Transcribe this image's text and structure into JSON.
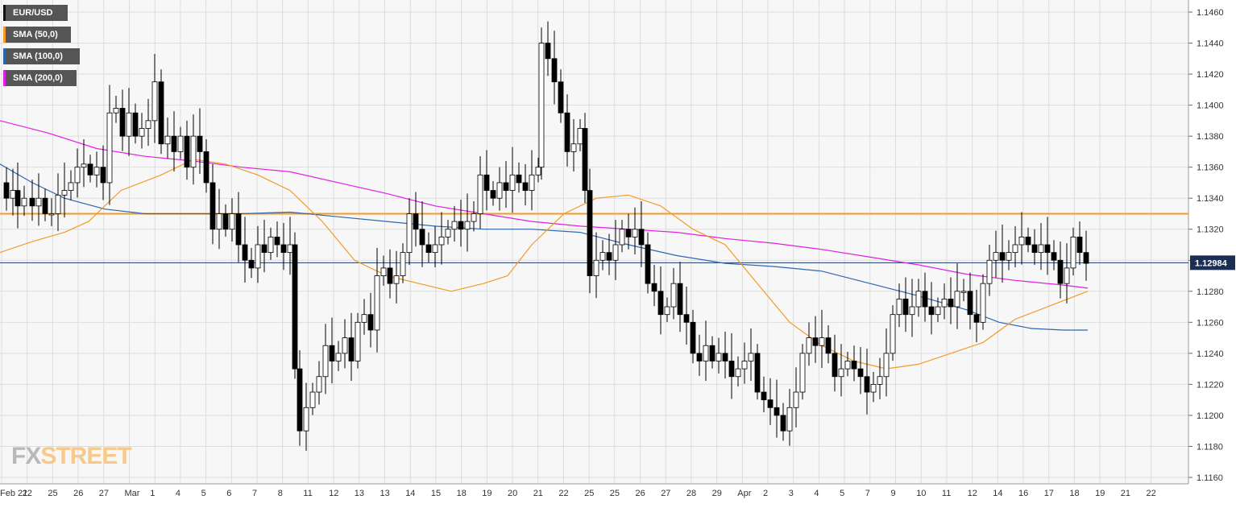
{
  "brand": {
    "fx": "FX",
    "street": "STREET"
  },
  "legend": [
    {
      "label": "EUR/USD",
      "color": "#111111"
    },
    {
      "label": "SMA (50,0)",
      "color": "#f39a2a"
    },
    {
      "label": "SMA (100,0)",
      "color": "#2f67ad"
    },
    {
      "label": "SMA (200,0)",
      "color": "#e020e0"
    }
  ],
  "price_label": "1.12984",
  "chart_data": {
    "type": "candlestick",
    "symbol": "EUR/USD",
    "ylim": [
      1.1155,
      1.1465
    ],
    "yticks": [
      "1.1460",
      "1.1440",
      "1.1420",
      "1.1400",
      "1.1380",
      "1.1360",
      "1.1340",
      "1.1320",
      "1.1300",
      "1.1280",
      "1.1260",
      "1.1240",
      "1.1220",
      "1.1200",
      "1.1180",
      "1.1160"
    ],
    "xticks": [
      "Feb 21",
      "22",
      "25",
      "26",
      "27",
      "Mar",
      "1",
      "4",
      "5",
      "6",
      "7",
      "8",
      "11",
      "12",
      "13",
      "13",
      "14",
      "15",
      "18",
      "19",
      "20",
      "21",
      "22",
      "25",
      "25",
      "26",
      "27",
      "28",
      "29",
      "Apr",
      "2",
      "3",
      "4",
      "5",
      "7",
      "9",
      "10",
      "11",
      "12",
      "14",
      "16",
      "17",
      "18",
      "19",
      "21",
      "22"
    ],
    "current_price": 1.12984,
    "resistance_level": 1.133,
    "colors": {
      "up": "#ffffff",
      "down": "#000000",
      "grid": "#dddddd",
      "bg": "#f7f7f7",
      "resistance": "#f39a2a",
      "current": "#1b3a6b",
      "sma50": "#f39a2a",
      "sma100": "#2f67ad",
      "sma200": "#e020e0"
    },
    "price_path": [
      [
        0,
        1.135
      ],
      [
        8,
        1.134
      ],
      [
        16,
        1.1345
      ],
      [
        22,
        1.1335
      ],
      [
        30,
        1.134
      ],
      [
        40,
        1.1335
      ],
      [
        48,
        1.134
      ],
      [
        56,
        1.133
      ],
      [
        64,
        1.133
      ],
      [
        72,
        1.1342
      ],
      [
        80,
        1.1345
      ],
      [
        88,
        1.135
      ],
      [
        96,
        1.136
      ],
      [
        104,
        1.1362
      ],
      [
        112,
        1.1355
      ],
      [
        120,
        1.136
      ],
      [
        128,
        1.135
      ],
      [
        136,
        1.1395
      ],
      [
        144,
        1.1398
      ],
      [
        152,
        1.138
      ],
      [
        160,
        1.1395
      ],
      [
        168,
        1.138
      ],
      [
        176,
        1.1385
      ],
      [
        184,
        1.139
      ],
      [
        192,
        1.1415
      ],
      [
        200,
        1.1375
      ],
      [
        208,
        1.138
      ],
      [
        216,
        1.137
      ],
      [
        224,
        1.138
      ],
      [
        232,
        1.136
      ],
      [
        240,
        1.138
      ],
      [
        248,
        1.137
      ],
      [
        256,
        1.135
      ],
      [
        264,
        1.132
      ],
      [
        272,
        1.133
      ],
      [
        280,
        1.132
      ],
      [
        288,
        1.133
      ],
      [
        296,
        1.131
      ],
      [
        304,
        1.13
      ],
      [
        312,
        1.1295
      ],
      [
        320,
        1.131
      ],
      [
        328,
        1.1305
      ],
      [
        336,
        1.1315
      ],
      [
        344,
        1.131
      ],
      [
        352,
        1.1305
      ],
      [
        360,
        1.131
      ],
      [
        366,
        1.123
      ],
      [
        372,
        1.119
      ],
      [
        380,
        1.1205
      ],
      [
        388,
        1.1215
      ],
      [
        396,
        1.1225
      ],
      [
        404,
        1.1245
      ],
      [
        412,
        1.1235
      ],
      [
        420,
        1.124
      ],
      [
        428,
        1.125
      ],
      [
        436,
        1.1235
      ],
      [
        444,
        1.126
      ],
      [
        452,
        1.1265
      ],
      [
        460,
        1.1255
      ],
      [
        468,
        1.129
      ],
      [
        476,
        1.1295
      ],
      [
        484,
        1.1285
      ],
      [
        492,
        1.129
      ],
      [
        500,
        1.1305
      ],
      [
        508,
        1.133
      ],
      [
        516,
        1.132
      ],
      [
        524,
        1.131
      ],
      [
        532,
        1.1305
      ],
      [
        540,
        1.131
      ],
      [
        548,
        1.1315
      ],
      [
        556,
        1.132
      ],
      [
        564,
        1.1325
      ],
      [
        572,
        1.132
      ],
      [
        580,
        1.1325
      ],
      [
        588,
        1.133
      ],
      [
        596,
        1.1355
      ],
      [
        604,
        1.1345
      ],
      [
        612,
        1.134
      ],
      [
        620,
        1.135
      ],
      [
        628,
        1.1345
      ],
      [
        636,
        1.1355
      ],
      [
        644,
        1.135
      ],
      [
        652,
        1.1345
      ],
      [
        660,
        1.1355
      ],
      [
        668,
        1.136
      ],
      [
        672,
        1.144
      ],
      [
        680,
        1.143
      ],
      [
        688,
        1.1415
      ],
      [
        696,
        1.1395
      ],
      [
        704,
        1.137
      ],
      [
        712,
        1.1375
      ],
      [
        720,
        1.1385
      ],
      [
        726,
        1.1345
      ],
      [
        732,
        1.129
      ],
      [
        740,
        1.13
      ],
      [
        748,
        1.1305
      ],
      [
        756,
        1.13
      ],
      [
        764,
        1.131
      ],
      [
        772,
        1.132
      ],
      [
        780,
        1.1315
      ],
      [
        788,
        1.132
      ],
      [
        796,
        1.131
      ],
      [
        804,
        1.1285
      ],
      [
        812,
        1.128
      ],
      [
        820,
        1.1265
      ],
      [
        828,
        1.127
      ],
      [
        836,
        1.1285
      ],
      [
        844,
        1.1265
      ],
      [
        852,
        1.126
      ],
      [
        860,
        1.124
      ],
      [
        868,
        1.1235
      ],
      [
        876,
        1.1245
      ],
      [
        884,
        1.1235
      ],
      [
        892,
        1.124
      ],
      [
        900,
        1.1235
      ],
      [
        908,
        1.1225
      ],
      [
        916,
        1.123
      ],
      [
        924,
        1.1235
      ],
      [
        932,
        1.124
      ],
      [
        940,
        1.1215
      ],
      [
        948,
        1.121
      ],
      [
        956,
        1.1205
      ],
      [
        964,
        1.12
      ],
      [
        972,
        1.119
      ],
      [
        980,
        1.1205
      ],
      [
        988,
        1.1215
      ],
      [
        996,
        1.124
      ],
      [
        1004,
        1.125
      ],
      [
        1012,
        1.1245
      ],
      [
        1020,
        1.125
      ],
      [
        1028,
        1.124
      ],
      [
        1036,
        1.1225
      ],
      [
        1044,
        1.123
      ],
      [
        1052,
        1.1235
      ],
      [
        1060,
        1.123
      ],
      [
        1068,
        1.1225
      ],
      [
        1076,
        1.1215
      ],
      [
        1084,
        1.122
      ],
      [
        1092,
        1.1225
      ],
      [
        1100,
        1.124
      ],
      [
        1108,
        1.1265
      ],
      [
        1116,
        1.1275
      ],
      [
        1124,
        1.1265
      ],
      [
        1132,
        1.127
      ],
      [
        1140,
        1.128
      ],
      [
        1148,
        1.127
      ],
      [
        1156,
        1.1265
      ],
      [
        1164,
        1.127
      ],
      [
        1172,
        1.1275
      ],
      [
        1180,
        1.127
      ],
      [
        1188,
        1.128
      ],
      [
        1196,
        1.128
      ],
      [
        1204,
        1.1265
      ],
      [
        1212,
        1.126
      ],
      [
        1220,
        1.1285
      ],
      [
        1228,
        1.13
      ],
      [
        1236,
        1.1305
      ],
      [
        1244,
        1.13
      ],
      [
        1252,
        1.1305
      ],
      [
        1260,
        1.131
      ],
      [
        1268,
        1.1315
      ],
      [
        1276,
        1.131
      ],
      [
        1284,
        1.1305
      ],
      [
        1292,
        1.131
      ],
      [
        1300,
        1.1305
      ],
      [
        1308,
        1.13
      ],
      [
        1316,
        1.1285
      ],
      [
        1324,
        1.1295
      ],
      [
        1332,
        1.1315
      ],
      [
        1340,
        1.1305
      ],
      [
        1348,
        1.1298
      ]
    ],
    "sma50": [
      [
        0,
        1.1305
      ],
      [
        40,
        1.1312
      ],
      [
        80,
        1.1318
      ],
      [
        110,
        1.1325
      ],
      [
        150,
        1.1345
      ],
      [
        200,
        1.1355
      ],
      [
        240,
        1.1365
      ],
      [
        280,
        1.1362
      ],
      [
        320,
        1.1355
      ],
      [
        360,
        1.1345
      ],
      [
        400,
        1.1325
      ],
      [
        440,
        1.13
      ],
      [
        480,
        1.129
      ],
      [
        520,
        1.1285
      ],
      [
        560,
        1.128
      ],
      [
        600,
        1.1285
      ],
      [
        630,
        1.129
      ],
      [
        660,
        1.131
      ],
      [
        700,
        1.133
      ],
      [
        740,
        1.134
      ],
      [
        780,
        1.1342
      ],
      [
        820,
        1.1335
      ],
      [
        860,
        1.132
      ],
      [
        900,
        1.131
      ],
      [
        940,
        1.1285
      ],
      [
        980,
        1.126
      ],
      [
        1020,
        1.1245
      ],
      [
        1060,
        1.1235
      ],
      [
        1100,
        1.123
      ],
      [
        1140,
        1.1233
      ],
      [
        1180,
        1.124
      ],
      [
        1220,
        1.1247
      ],
      [
        1260,
        1.1262
      ],
      [
        1300,
        1.127
      ],
      [
        1350,
        1.128
      ]
    ],
    "sma100": [
      [
        0,
        1.1362
      ],
      [
        40,
        1.135
      ],
      [
        80,
        1.134
      ],
      [
        130,
        1.1333
      ],
      [
        180,
        1.133
      ],
      [
        240,
        1.133
      ],
      [
        300,
        1.133
      ],
      [
        360,
        1.1331
      ],
      [
        420,
        1.1328
      ],
      [
        480,
        1.1325
      ],
      [
        540,
        1.1322
      ],
      [
        600,
        1.132
      ],
      [
        660,
        1.132
      ],
      [
        720,
        1.1318
      ],
      [
        780,
        1.131
      ],
      [
        840,
        1.1303
      ],
      [
        900,
        1.1298
      ],
      [
        960,
        1.1296
      ],
      [
        1020,
        1.1293
      ],
      [
        1080,
        1.1285
      ],
      [
        1140,
        1.1277
      ],
      [
        1200,
        1.1268
      ],
      [
        1240,
        1.126
      ],
      [
        1280,
        1.1256
      ],
      [
        1320,
        1.1255
      ],
      [
        1350,
        1.1255
      ]
    ],
    "sma200": [
      [
        0,
        1.139
      ],
      [
        60,
        1.1382
      ],
      [
        120,
        1.1372
      ],
      [
        180,
        1.1367
      ],
      [
        240,
        1.1364
      ],
      [
        300,
        1.136
      ],
      [
        360,
        1.1357
      ],
      [
        420,
        1.135
      ],
      [
        480,
        1.1343
      ],
      [
        540,
        1.1335
      ],
      [
        600,
        1.133
      ],
      [
        660,
        1.1325
      ],
      [
        720,
        1.1322
      ],
      [
        780,
        1.132
      ],
      [
        840,
        1.1318
      ],
      [
        900,
        1.1314
      ],
      [
        960,
        1.1311
      ],
      [
        1020,
        1.1307
      ],
      [
        1080,
        1.1302
      ],
      [
        1140,
        1.1297
      ],
      [
        1200,
        1.1291
      ],
      [
        1260,
        1.1287
      ],
      [
        1320,
        1.1284
      ],
      [
        1350,
        1.1282
      ]
    ]
  }
}
